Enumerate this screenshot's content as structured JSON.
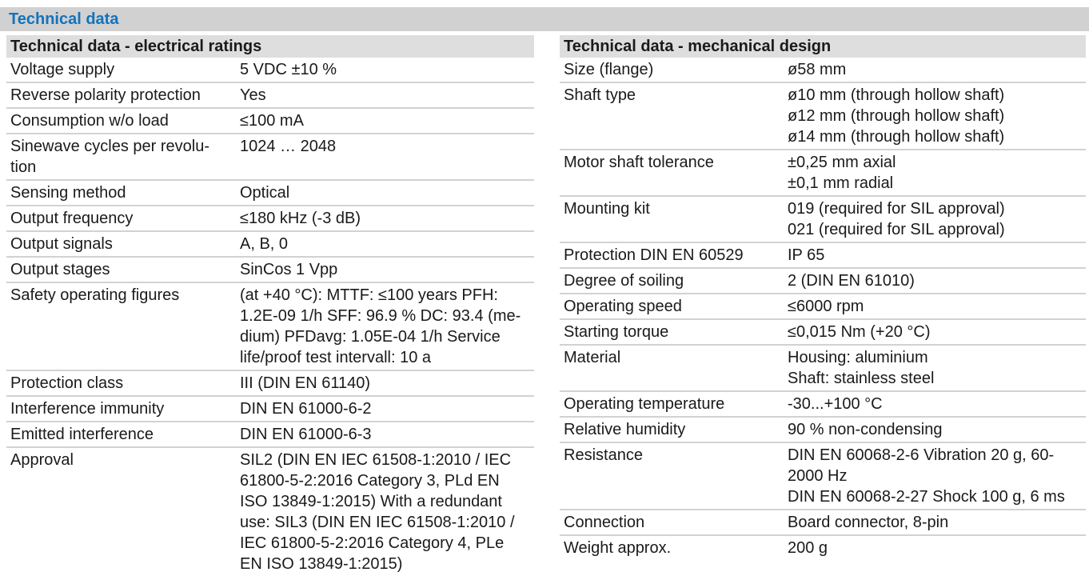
{
  "page_title": "Technical data",
  "colors": {
    "accent_blue": "#1173bd",
    "title_bar_bg": "#d1d1d1",
    "section_header_bg": "#dedede",
    "divider": "#d2d2d2",
    "text": "#1a1a1a",
    "page_bg": "#ffffff"
  },
  "tables": [
    {
      "id": "electrical-ratings",
      "title": "Technical data - electrical ratings",
      "rows": [
        {
          "label": "Voltage supply",
          "value": "5 VDC ±10 %"
        },
        {
          "label": "Reverse polarity protection",
          "value": "Yes"
        },
        {
          "label": "Consumption w/o load",
          "value": "≤100 mA"
        },
        {
          "label": "Sinewave cycles per revolu­tion",
          "value": "1024 … 2048"
        },
        {
          "label": "Sensing method",
          "value": "Optical"
        },
        {
          "label": "Output frequency",
          "value": "≤180 kHz (-3 dB)"
        },
        {
          "label": "Output signals",
          "value": "A, B, 0"
        },
        {
          "label": "Output stages",
          "value": "SinCos 1 Vpp"
        },
        {
          "label": "Safety operating figures",
          "value": "(at +40 °C): MTTF: ≤100 years PFH: 1.2E-09 1/h SFF: 96.9 % DC: 93.4 (me­dium) PFDavg: 1.05E-04 1/h Service life/proof test intervall: 10 a"
        },
        {
          "label": "Protection class",
          "value": "III (DIN EN 61140)"
        },
        {
          "label": "Interference immunity",
          "value": "DIN EN 61000-6-2"
        },
        {
          "label": "Emitted interference",
          "value": "DIN EN 61000-6-3"
        },
        {
          "label": "Approval",
          "value": "SIL2 (DIN EN IEC 61508-1:2010 / IEC 61800-5-2:2016 Category 3, PLd EN ISO 13849-1:2015) With a redundant use: SIL3 (DIN EN IEC 61508-1:2010 / IEC 61800-5-2:2016 Category 4, PLe EN ISO 13849-1:2015)"
        }
      ]
    },
    {
      "id": "mechanical-design",
      "title": "Technical data - mechanical design",
      "rows": [
        {
          "label": "Size (flange)",
          "value": "ø58 mm"
        },
        {
          "label": "Shaft type",
          "value": "ø10 mm (through hollow shaft)\nø12 mm (through hollow shaft)\nø14 mm (through hollow shaft)"
        },
        {
          "label": "Motor shaft tolerance",
          "value": "±0,25 mm axial\n±0,1 mm radial"
        },
        {
          "label": "Mounting kit",
          "value": "019 (required for SIL approval)\n021 (required for SIL approval)"
        },
        {
          "label": "Protection DIN EN 60529",
          "value": "IP 65"
        },
        {
          "label": "Degree of soiling",
          "value": "2 (DIN EN 61010)"
        },
        {
          "label": "Operating speed",
          "value": "≤6000 rpm"
        },
        {
          "label": "Starting torque",
          "value": "≤0,015 Nm (+20 °C)"
        },
        {
          "label": "Material",
          "value": "Housing: aluminium\nShaft: stainless steel"
        },
        {
          "label": "Operating temperature",
          "value": "-30...+100 °C"
        },
        {
          "label": "Relative humidity",
          "value": "90 % non-condensing"
        },
        {
          "label": "Resistance",
          "value": "DIN EN 60068-2-6 Vibration 20 g, 60-2000 Hz\nDIN EN 60068-2-27 Shock 100 g, 6 ms"
        },
        {
          "label": "Connection",
          "value": "Board connector, 8-pin"
        },
        {
          "label": "Weight approx.",
          "value": "200 g"
        }
      ]
    }
  ]
}
